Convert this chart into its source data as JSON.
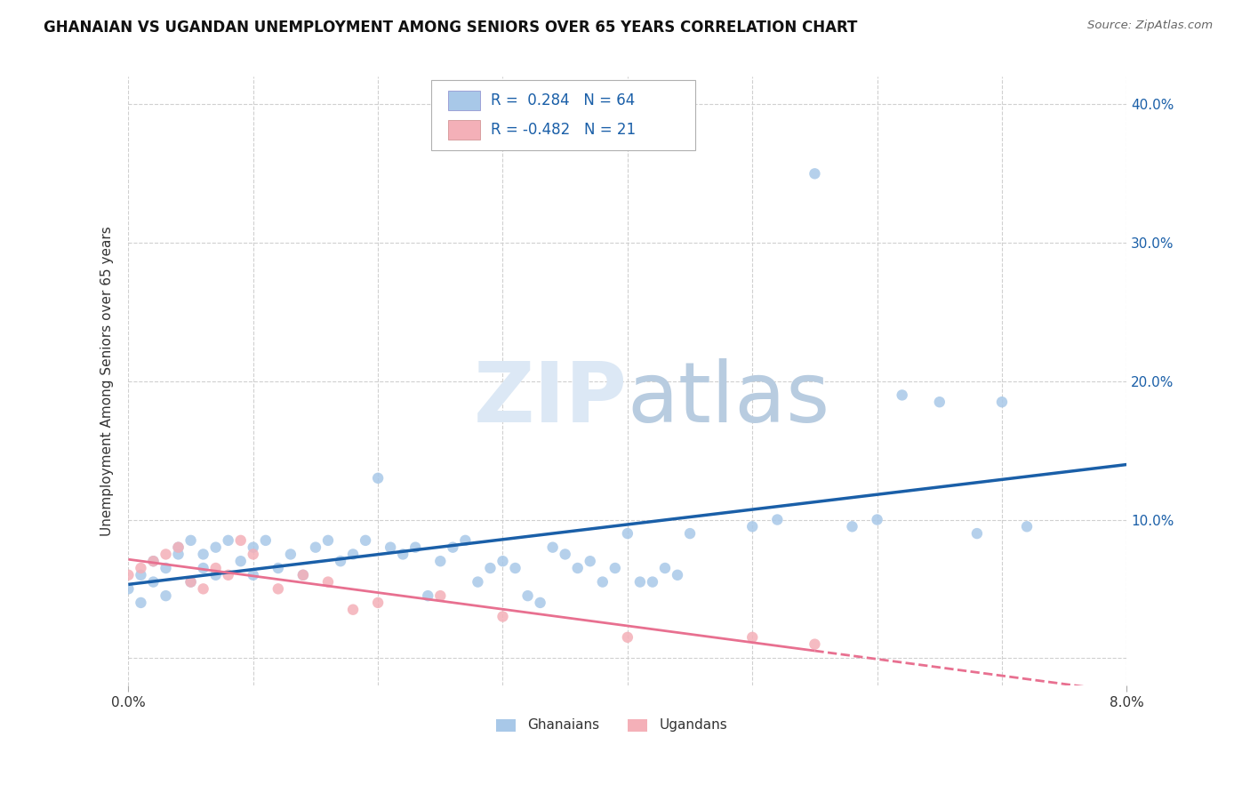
{
  "title": "GHANAIAN VS UGANDAN UNEMPLOYMENT AMONG SENIORS OVER 65 YEARS CORRELATION CHART",
  "source": "Source: ZipAtlas.com",
  "ylabel": "Unemployment Among Seniors over 65 years",
  "xmin": 0.0,
  "xmax": 0.08,
  "ymin": -0.02,
  "ymax": 0.42,
  "y_ticks": [
    0.0,
    0.1,
    0.2,
    0.3,
    0.4
  ],
  "x_ticks": [
    0.0,
    0.01,
    0.02,
    0.03,
    0.04,
    0.05,
    0.06,
    0.07,
    0.08
  ],
  "ghana_color": "#a8c8e8",
  "uganda_color": "#f4b0b8",
  "ghana_line_color": "#1a5fa8",
  "uganda_line_color": "#e87090",
  "ghana_R": 0.284,
  "ghana_N": 64,
  "uganda_R": -0.482,
  "uganda_N": 21,
  "background_color": "#ffffff",
  "grid_color": "#d0d0d0",
  "legend_text_color": "#1a5fa8",
  "watermark_color": "#dce8f5",
  "gh_x": [
    0.0,
    0.001,
    0.001,
    0.002,
    0.002,
    0.003,
    0.003,
    0.004,
    0.004,
    0.005,
    0.005,
    0.006,
    0.006,
    0.007,
    0.007,
    0.008,
    0.009,
    0.01,
    0.01,
    0.011,
    0.012,
    0.013,
    0.014,
    0.015,
    0.016,
    0.017,
    0.018,
    0.019,
    0.02,
    0.021,
    0.022,
    0.023,
    0.024,
    0.025,
    0.026,
    0.027,
    0.028,
    0.029,
    0.03,
    0.031,
    0.032,
    0.033,
    0.034,
    0.035,
    0.036,
    0.037,
    0.038,
    0.039,
    0.04,
    0.041,
    0.042,
    0.043,
    0.044,
    0.045,
    0.05,
    0.052,
    0.055,
    0.058,
    0.06,
    0.062,
    0.065,
    0.068,
    0.07,
    0.072
  ],
  "gh_y": [
    0.05,
    0.04,
    0.06,
    0.055,
    0.07,
    0.065,
    0.045,
    0.075,
    0.08,
    0.055,
    0.085,
    0.065,
    0.075,
    0.06,
    0.08,
    0.085,
    0.07,
    0.08,
    0.06,
    0.085,
    0.065,
    0.075,
    0.06,
    0.08,
    0.085,
    0.07,
    0.075,
    0.085,
    0.13,
    0.08,
    0.075,
    0.08,
    0.045,
    0.07,
    0.08,
    0.085,
    0.055,
    0.065,
    0.07,
    0.065,
    0.045,
    0.04,
    0.08,
    0.075,
    0.065,
    0.07,
    0.055,
    0.065,
    0.09,
    0.055,
    0.055,
    0.065,
    0.06,
    0.09,
    0.095,
    0.1,
    0.35,
    0.095,
    0.1,
    0.19,
    0.185,
    0.09,
    0.185,
    0.095
  ],
  "ug_x": [
    0.0,
    0.001,
    0.002,
    0.003,
    0.004,
    0.005,
    0.006,
    0.007,
    0.008,
    0.009,
    0.01,
    0.012,
    0.014,
    0.016,
    0.018,
    0.02,
    0.025,
    0.03,
    0.04,
    0.05,
    0.055
  ],
  "ug_y": [
    0.06,
    0.065,
    0.07,
    0.075,
    0.08,
    0.055,
    0.05,
    0.065,
    0.06,
    0.085,
    0.075,
    0.05,
    0.06,
    0.055,
    0.035,
    0.04,
    0.045,
    0.03,
    0.015,
    0.015,
    0.01
  ]
}
